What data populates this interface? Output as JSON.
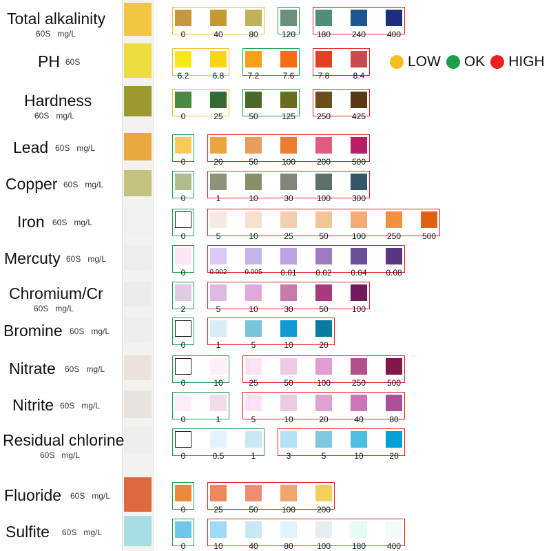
{
  "colors": {
    "low": "#f5bd1e",
    "ok": "#1a9e4c",
    "high": "#ee1f1f"
  },
  "legend": [
    {
      "key": "low",
      "label": "LOW",
      "color": "#f5bd1e"
    },
    {
      "key": "ok",
      "label": "OK",
      "color": "#1a9e4c"
    },
    {
      "key": "high",
      "label": "HIGH",
      "color": "#ee1f1f"
    }
  ],
  "tests": [
    {
      "name": "Total alkalinity",
      "time": "60S",
      "unit": "mg/L",
      "strip": "#f1c640",
      "groups": [
        {
          "status": "low",
          "items": [
            [
              "0",
              "#c6973f"
            ],
            [
              "40",
              "#c29a31"
            ],
            [
              "80",
              "#c0b256"
            ]
          ]
        },
        {
          "status": "ok",
          "items": [
            [
              "120",
              "#6b917a"
            ]
          ]
        },
        {
          "status": "high",
          "items": [
            [
              "180",
              "#4e8e7a"
            ],
            [
              "240",
              "#1d5590"
            ],
            [
              "400",
              "#1c2f7c"
            ]
          ]
        }
      ]
    },
    {
      "name": "PH",
      "time": "60S",
      "unit": "",
      "strip": "#eddc3f",
      "groups": [
        {
          "status": "low",
          "items": [
            [
              "6.2",
              "#f8e816"
            ],
            [
              "6.8",
              "#f8d615"
            ]
          ]
        },
        {
          "status": "ok",
          "items": [
            [
              "7.2",
              "#f79f16"
            ],
            [
              "7.6",
              "#f66c16"
            ]
          ]
        },
        {
          "status": "high",
          "items": [
            [
              "7.8",
              "#e24223"
            ],
            [
              "8.4",
              "#c94a50"
            ]
          ]
        }
      ]
    },
    {
      "name": "Hardness",
      "time": "60S",
      "unit": "mg/L",
      "strip": "#9b9a2e",
      "groups": [
        {
          "status": "low",
          "items": [
            [
              "0",
              "#4b8841"
            ],
            [
              "25",
              "#356b2d"
            ]
          ]
        },
        {
          "status": "ok",
          "items": [
            [
              "50",
              "#4b6a25"
            ],
            [
              "125",
              "#6a6c1f"
            ]
          ]
        },
        {
          "status": "high",
          "items": [
            [
              "250",
              "#6d4d18"
            ],
            [
              "425",
              "#5b3712"
            ]
          ]
        }
      ]
    },
    {
      "name": "Lead",
      "time": "60S",
      "unit": "mg/L",
      "strip": "#e8a83f",
      "groups": [
        {
          "status": "ok",
          "items": [
            [
              "0",
              "#f7ca5c"
            ]
          ]
        },
        {
          "status": "high",
          "items": [
            [
              "20",
              "#eaa53d"
            ],
            [
              "50",
              "#e69d5c"
            ],
            [
              "100",
              "#ec7b34"
            ],
            [
              "200",
              "#e05c81"
            ],
            [
              "500",
              "#b51f66"
            ]
          ]
        }
      ]
    },
    {
      "name": "Copper",
      "time": "60S",
      "unit": "mg/L",
      "strip": "#c4c27c",
      "groups": [
        {
          "status": "ok",
          "items": [
            [
              "0",
              "#afbd8d"
            ]
          ]
        },
        {
          "status": "high",
          "items": [
            [
              "1",
              "#8f9179"
            ],
            [
              "10",
              "#888e65"
            ],
            [
              "30",
              "#828579"
            ],
            [
              "100",
              "#5d7169"
            ],
            [
              "300",
              "#335768"
            ]
          ]
        }
      ]
    },
    {
      "name": "Iron",
      "time": "60S",
      "unit": "mg/L",
      "strip": "#f1f0ee",
      "groups": [
        {
          "status": "ok",
          "items": [
            [
              "0",
              "blank"
            ]
          ]
        },
        {
          "status": "high",
          "items": [
            [
              "5",
              "#f7e9e2"
            ],
            [
              "10",
              "#f5e1cd"
            ],
            [
              "25",
              "#f3cfb1"
            ],
            [
              "50",
              "#f1c696"
            ],
            [
              "100",
              "#f2ad72"
            ],
            [
              "250",
              "#ef923b"
            ],
            [
              "500",
              "#e06211"
            ]
          ]
        }
      ]
    },
    {
      "name": "Mercuty",
      "time": "60S",
      "unit": "mg/L",
      "strip": "#efedeb",
      "groups": [
        {
          "status": "ok",
          "items": [
            [
              "0",
              "#fbe6f3"
            ]
          ]
        },
        {
          "status": "high",
          "items": [
            [
              "0.002",
              "#dbcaf5"
            ],
            [
              "0.005",
              "#c6b6e7"
            ],
            [
              "0.01",
              "#b8a4e3"
            ],
            [
              "0.02",
              "#9e7cc2"
            ],
            [
              "0.04",
              "#6c4f9a"
            ],
            [
              "0.08",
              "#5a3581"
            ]
          ]
        }
      ]
    },
    {
      "name": "Chromium/Cr",
      "time": "60S",
      "unit": "mg/L",
      "strip": "#eeecea",
      "groups": [
        {
          "status": "ok",
          "items": [
            [
              "2",
              "#e0cce2"
            ]
          ]
        },
        {
          "status": "high",
          "items": [
            [
              "5",
              "#ddb8e1"
            ],
            [
              "10",
              "#dfaad9"
            ],
            [
              "30",
              "#c57aa8"
            ],
            [
              "50",
              "#a63c7e"
            ],
            [
              "100",
              "#74195d"
            ]
          ]
        }
      ]
    },
    {
      "name": "Bromine",
      "time": "60S",
      "unit": "mg/L",
      "strip": "#efeeec",
      "groups": [
        {
          "status": "ok",
          "items": [
            [
              "0",
              "blank"
            ]
          ]
        },
        {
          "status": "high",
          "items": [
            [
              "1",
              "#d8ecf4"
            ],
            [
              "5",
              "#7bc3dc"
            ],
            [
              "10",
              "#129ad2"
            ],
            [
              "20",
              "#067c9e"
            ]
          ]
        }
      ]
    },
    {
      "name": "Nitrate",
      "time": "60S",
      "unit": "mg/L",
      "strip": "#ebe2da",
      "groups": [
        {
          "status": "ok",
          "items": [
            [
              "0",
              "blank"
            ],
            [
              "10",
              "#fbeff8"
            ]
          ]
        },
        {
          "status": "high",
          "items": [
            [
              "25",
              "#fbe3f4"
            ],
            [
              "50",
              "#eccae2"
            ],
            [
              "100",
              "#df9dd0"
            ],
            [
              "250",
              "#b1508b"
            ],
            [
              "500",
              "#80184a"
            ]
          ]
        }
      ]
    },
    {
      "name": "Nitrite",
      "time": "60S",
      "unit": "mg/L",
      "strip": "#e8e3df",
      "groups": [
        {
          "status": "ok",
          "items": [
            [
              "0",
              "#fbeef8"
            ],
            [
              "1",
              "#f0dceb"
            ]
          ]
        },
        {
          "status": "high",
          "items": [
            [
              "5",
              "#fbe1f3"
            ],
            [
              "10",
              "#ebcbe3"
            ],
            [
              "20",
              "#dfa3d3"
            ],
            [
              "40",
              "#cb74b7"
            ],
            [
              "80",
              "#a95098"
            ]
          ]
        }
      ]
    },
    {
      "name": "Residual chlorine",
      "time": "60S",
      "unit": "mg/L",
      "strip": "#eeeeec",
      "groups": [
        {
          "status": "ok",
          "items": [
            [
              "0",
              "blank"
            ],
            [
              "0.5",
              "#e6f2fb"
            ],
            [
              "1",
              "#cbe7f3"
            ]
          ]
        },
        {
          "status": "high",
          "items": [
            [
              "3",
              "#b4e1f5"
            ],
            [
              "5",
              "#7ec7de"
            ],
            [
              "10",
              "#4bbfe1"
            ],
            [
              "20",
              "#04a0d9"
            ]
          ]
        }
      ]
    },
    {
      "name": "Fluoride",
      "time": "60S",
      "unit": "mg/L",
      "strip": "#dd6a3f",
      "groups": [
        {
          "status": "ok",
          "items": [
            [
              "0",
              "#ec893a"
            ]
          ]
        },
        {
          "status": "high",
          "items": [
            [
              "25",
              "#ef875a"
            ],
            [
              "50",
              "#ee8d6f"
            ],
            [
              "100",
              "#efa56c"
            ],
            [
              "200",
              "#f5d059"
            ]
          ]
        }
      ]
    },
    {
      "name": "Sulfite",
      "time": "60S",
      "unit": "mg/L",
      "strip": "#a7dde3",
      "groups": [
        {
          "status": "ok",
          "items": [
            [
              "0",
              "#6dc7e8"
            ]
          ]
        },
        {
          "status": "high",
          "items": [
            [
              "10",
              "#9ddcf4"
            ],
            [
              "40",
              "#c7e9f4"
            ],
            [
              "80",
              "#dff4fd"
            ],
            [
              "100",
              "#e3eef0"
            ],
            [
              "180",
              "#e3faf7"
            ],
            [
              "400",
              "#f2fbfb"
            ]
          ]
        }
      ]
    }
  ]
}
